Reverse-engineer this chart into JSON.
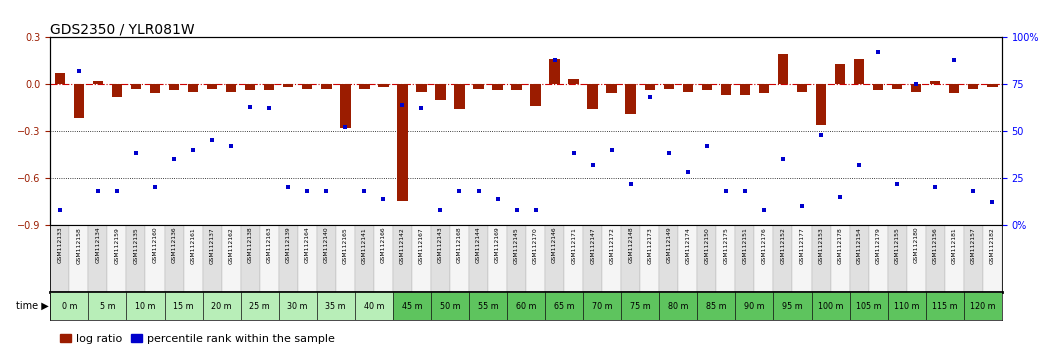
{
  "title": "GDS2350 / YLR081W",
  "gsm_labels": [
    "GSM112133",
    "GSM112158",
    "GSM112134",
    "GSM112159",
    "GSM112135",
    "GSM112160",
    "GSM112136",
    "GSM112161",
    "GSM112137",
    "GSM112162",
    "GSM112138",
    "GSM112163",
    "GSM112139",
    "GSM112164",
    "GSM112140",
    "GSM112165",
    "GSM112141",
    "GSM112166",
    "GSM112142",
    "GSM112167",
    "GSM112143",
    "GSM112168",
    "GSM112144",
    "GSM112169",
    "GSM112145",
    "GSM112170",
    "GSM112146",
    "GSM112171",
    "GSM112147",
    "GSM112172",
    "GSM112148",
    "GSM112173",
    "GSM112149",
    "GSM112174",
    "GSM112150",
    "GSM112175",
    "GSM112151",
    "GSM112176",
    "GSM112152",
    "GSM112177",
    "GSM112153",
    "GSM112178",
    "GSM112154",
    "GSM112179",
    "GSM112155",
    "GSM112180",
    "GSM112156",
    "GSM112181",
    "GSM112157",
    "GSM112182"
  ],
  "time_labels": [
    "0 m",
    "5 m",
    "10 m",
    "15 m",
    "20 m",
    "25 m",
    "30 m",
    "35 m",
    "40 m",
    "45 m",
    "50 m",
    "55 m",
    "60 m",
    "65 m",
    "70 m",
    "75 m",
    "80 m",
    "85 m",
    "90 m",
    "95 m",
    "100 m",
    "105 m",
    "110 m",
    "115 m",
    "120 m"
  ],
  "log_ratio": [
    0.07,
    -0.22,
    0.02,
    -0.08,
    -0.03,
    -0.06,
    -0.04,
    -0.05,
    -0.03,
    -0.05,
    -0.04,
    -0.04,
    -0.02,
    -0.03,
    -0.03,
    -0.28,
    -0.03,
    -0.02,
    -0.75,
    -0.05,
    -0.1,
    -0.16,
    -0.03,
    -0.04,
    -0.04,
    -0.14,
    0.16,
    0.03,
    -0.16,
    -0.06,
    -0.19,
    -0.04,
    -0.03,
    -0.05,
    -0.04,
    -0.07,
    -0.07,
    -0.06,
    0.19,
    -0.05,
    -0.26,
    0.13,
    0.16,
    -0.04,
    -0.03,
    -0.05,
    0.02,
    -0.06,
    -0.03,
    -0.02
  ],
  "percentile": [
    8,
    82,
    18,
    18,
    38,
    20,
    35,
    40,
    45,
    42,
    63,
    62,
    20,
    18,
    18,
    52,
    18,
    14,
    64,
    62,
    8,
    18,
    18,
    14,
    8,
    8,
    88,
    38,
    32,
    40,
    22,
    68,
    38,
    28,
    42,
    18,
    18,
    8,
    35,
    10,
    48,
    15,
    32,
    92,
    22,
    75,
    20,
    88,
    18,
    12
  ],
  "ylim_left": [
    -0.9,
    0.3
  ],
  "ylim_right": [
    0,
    100
  ],
  "yticks_left": [
    -0.9,
    -0.6,
    -0.3,
    0.0,
    0.3
  ],
  "yticks_right": [
    0,
    25,
    50,
    75,
    100
  ],
  "ytick_right_labels": [
    "0%",
    "25",
    "50",
    "75",
    "100%"
  ],
  "hlines": [
    -0.3,
    -0.6
  ],
  "bar_color": "#9B1C00",
  "dot_color": "#0000CC",
  "zero_line_color": "#CC0000",
  "gsm_bg_even": "#E0E0E0",
  "gsm_bg_odd": "#F5F5F5",
  "time_bg_light": "#B8EEB8",
  "time_bg_dark": "#5EC45E",
  "title_fontsize": 10,
  "tick_fontsize": 7,
  "legend_fontsize": 8
}
